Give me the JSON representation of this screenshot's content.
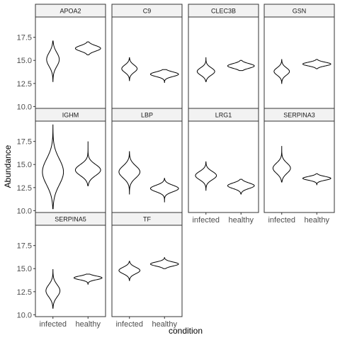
{
  "chart_data": {
    "type": "violin",
    "facet_layout": "wrap",
    "ncol": 4,
    "xlabel": "condition",
    "ylabel": "Abundance",
    "ylim": [
      9.8,
      19.7
    ],
    "yticks": [
      10.0,
      12.5,
      15.0,
      17.5
    ],
    "ytick_labels": [
      "10.0",
      "12.5",
      "15.0",
      "17.5"
    ],
    "categories": [
      "infected",
      "healthy"
    ],
    "grid": false,
    "panels": [
      {
        "name": "APOA2",
        "violins": [
          {
            "condition": "infected",
            "min": 12.7,
            "max": 17.1,
            "mode": 15.1,
            "half_width": 0.18,
            "sd": 0.75
          },
          {
            "condition": "healthy",
            "min": 15.6,
            "max": 17.0,
            "mode": 16.3,
            "half_width": 0.36,
            "sd": 0.3
          }
        ]
      },
      {
        "name": "C9",
        "violins": [
          {
            "condition": "infected",
            "min": 12.8,
            "max": 15.3,
            "mode": 14.1,
            "half_width": 0.22,
            "sd": 0.4
          },
          {
            "condition": "healthy",
            "min": 12.6,
            "max": 14.0,
            "mode": 13.5,
            "half_width": 0.4,
            "sd": 0.25
          }
        ]
      },
      {
        "name": "CLEC3B",
        "violins": [
          {
            "condition": "infected",
            "min": 12.7,
            "max": 15.3,
            "mode": 13.8,
            "half_width": 0.25,
            "sd": 0.4
          },
          {
            "condition": "healthy",
            "min": 13.9,
            "max": 15.0,
            "mode": 14.4,
            "half_width": 0.38,
            "sd": 0.25
          }
        ]
      },
      {
        "name": "GSN",
        "violins": [
          {
            "condition": "infected",
            "min": 12.5,
            "max": 15.1,
            "mode": 13.8,
            "half_width": 0.22,
            "sd": 0.4
          },
          {
            "condition": "healthy",
            "min": 14.1,
            "max": 15.1,
            "mode": 14.6,
            "half_width": 0.4,
            "sd": 0.2
          }
        ]
      },
      {
        "name": "IGHM",
        "violins": [
          {
            "condition": "infected",
            "min": 10.2,
            "max": 19.3,
            "mode": 14.2,
            "half_width": 0.3,
            "sd": 1.4
          },
          {
            "condition": "healthy",
            "min": 12.7,
            "max": 17.5,
            "mode": 14.4,
            "half_width": 0.36,
            "sd": 0.6
          }
        ]
      },
      {
        "name": "LBP",
        "violins": [
          {
            "condition": "infected",
            "min": 11.8,
            "max": 16.4,
            "mode": 14.2,
            "half_width": 0.3,
            "sd": 0.65
          },
          {
            "condition": "healthy",
            "min": 10.9,
            "max": 13.5,
            "mode": 12.4,
            "half_width": 0.4,
            "sd": 0.35
          }
        ]
      },
      {
        "name": "LRG1",
        "violins": [
          {
            "condition": "infected",
            "min": 12.2,
            "max": 15.3,
            "mode": 13.8,
            "half_width": 0.3,
            "sd": 0.45
          },
          {
            "condition": "healthy",
            "min": 11.8,
            "max": 13.4,
            "mode": 12.7,
            "half_width": 0.38,
            "sd": 0.3
          }
        ]
      },
      {
        "name": "SERPINA3",
        "violins": [
          {
            "condition": "infected",
            "min": 13.1,
            "max": 17.0,
            "mode": 14.6,
            "half_width": 0.25,
            "sd": 0.55
          },
          {
            "condition": "healthy",
            "min": 12.8,
            "max": 14.0,
            "mode": 13.5,
            "half_width": 0.4,
            "sd": 0.2
          }
        ]
      },
      {
        "name": "SERPINA5",
        "violins": [
          {
            "condition": "infected",
            "min": 10.7,
            "max": 14.9,
            "mode": 12.6,
            "half_width": 0.2,
            "sd": 0.65
          },
          {
            "condition": "healthy",
            "min": 13.3,
            "max": 14.4,
            "mode": 14.0,
            "half_width": 0.4,
            "sd": 0.2
          }
        ]
      },
      {
        "name": "TF",
        "violins": [
          {
            "condition": "infected",
            "min": 13.7,
            "max": 15.8,
            "mode": 14.8,
            "half_width": 0.3,
            "sd": 0.35
          },
          {
            "condition": "healthy",
            "min": 15.0,
            "max": 16.2,
            "mode": 15.5,
            "half_width": 0.4,
            "sd": 0.22
          }
        ]
      }
    ]
  }
}
